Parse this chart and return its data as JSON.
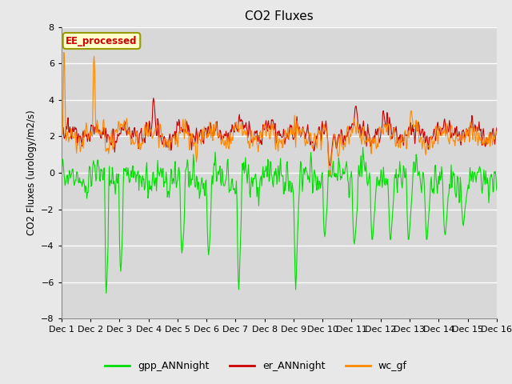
{
  "title": "CO2 Fluxes",
  "ylabel": "CO2 Fluxes (urology/m2/s)",
  "ylim": [
    -8,
    8
  ],
  "yticks": [
    -8,
    -6,
    -4,
    -2,
    0,
    2,
    4,
    6,
    8
  ],
  "background_color": "#e8e8e8",
  "plot_bg_color": "#d8d8d8",
  "colors": {
    "gpp": "#00dd00",
    "er": "#cc0000",
    "wc": "#ff8800"
  },
  "legend_labels": [
    "gpp_ANNnight",
    "er_ANNnight",
    "wc_gf"
  ],
  "annotation_text": "EE_processed",
  "annotation_color": "#cc0000",
  "annotation_bg": "#ffffcc",
  "annotation_border": "#999900",
  "n_days": 15,
  "points_per_day": 48
}
